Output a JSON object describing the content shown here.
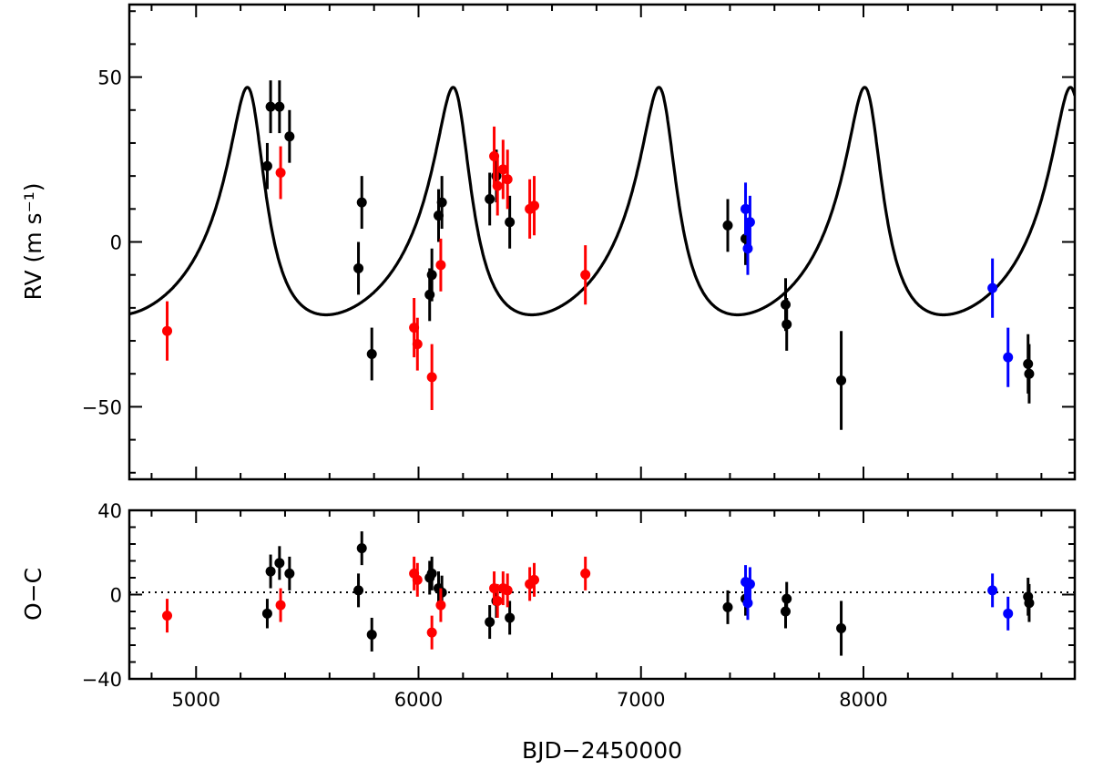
{
  "chart_data": [
    {
      "type": "scatter",
      "panel": "rv",
      "ylabel": "RV (m s⁻¹)",
      "xlim": [
        4700,
        8950
      ],
      "ylim": [
        -72,
        72
      ],
      "x_ticks": [
        5000,
        6000,
        7000,
        8000
      ],
      "y_ticks": [
        50,
        0,
        -50
      ],
      "y_tick_labels": [
        "50",
        "0",
        "−50"
      ],
      "model": {
        "period": 925,
        "t_peri": 5250,
        "ecc": 0.45,
        "omega_deg": 22,
        "K": 34.5,
        "gamma": -2
      },
      "series": [
        {
          "color": "#000000",
          "points": [
            [
              5320,
              23,
              7
            ],
            [
              5335,
              41,
              8
            ],
            [
              5375,
              41,
              8
            ],
            [
              5420,
              32,
              8
            ],
            [
              5730,
              -8,
              8
            ],
            [
              5745,
              12,
              8
            ],
            [
              5790,
              -34,
              8
            ],
            [
              6050,
              -16,
              8
            ],
            [
              6060,
              -10,
              8
            ],
            [
              6090,
              8,
              8
            ],
            [
              6105,
              12,
              8
            ],
            [
              6320,
              13,
              8
            ],
            [
              6350,
              20,
              8
            ],
            [
              6410,
              6,
              8
            ],
            [
              7390,
              5,
              8
            ],
            [
              7470,
              1,
              8
            ],
            [
              7650,
              -19,
              8
            ],
            [
              7655,
              -25,
              8
            ],
            [
              7900,
              -42,
              15
            ],
            [
              8740,
              -37,
              9
            ],
            [
              8745,
              -40,
              9
            ]
          ]
        },
        {
          "color": "#ff0000",
          "points": [
            [
              4870,
              -27,
              9
            ],
            [
              5380,
              21,
              8
            ],
            [
              5980,
              -26,
              9
            ],
            [
              5995,
              -31,
              8
            ],
            [
              6060,
              -41,
              10
            ],
            [
              6100,
              -7,
              8
            ],
            [
              6340,
              26,
              9
            ],
            [
              6355,
              17,
              9
            ],
            [
              6380,
              22,
              9
            ],
            [
              6400,
              19,
              9
            ],
            [
              6500,
              10,
              9
            ],
            [
              6520,
              11,
              9
            ],
            [
              6750,
              -10,
              9
            ]
          ]
        },
        {
          "color": "#0000ff",
          "points": [
            [
              7470,
              10,
              8
            ],
            [
              7480,
              -2,
              8
            ],
            [
              7490,
              6,
              8
            ],
            [
              8580,
              -14,
              9
            ],
            [
              8650,
              -35,
              9
            ]
          ]
        }
      ]
    },
    {
      "type": "scatter",
      "panel": "residuals",
      "xlabel": "BJD−2450000",
      "ylabel": "O−C",
      "xlim": [
        4700,
        8950
      ],
      "ylim": [
        -40,
        40
      ],
      "x_ticks": [
        5000,
        6000,
        7000,
        8000
      ],
      "x_tick_labels": [
        "5000",
        "6000",
        "7000",
        "8000"
      ],
      "y_ticks": [
        40,
        0,
        -40
      ],
      "y_tick_labels": [
        "40",
        "0",
        "−40"
      ],
      "zero_line": "dotted",
      "series": [
        {
          "color": "#000000",
          "points": [
            [
              5320,
              -9,
              7
            ],
            [
              5335,
              11,
              8
            ],
            [
              5375,
              15,
              8
            ],
            [
              5420,
              10,
              8
            ],
            [
              5730,
              2,
              8
            ],
            [
              5745,
              22,
              8
            ],
            [
              5790,
              -19,
              8
            ],
            [
              6050,
              8,
              8
            ],
            [
              6060,
              10,
              8
            ],
            [
              6090,
              3,
              8
            ],
            [
              6105,
              1,
              8
            ],
            [
              6320,
              -13,
              8
            ],
            [
              6350,
              -3,
              8
            ],
            [
              6410,
              -11,
              8
            ],
            [
              7390,
              -6,
              8
            ],
            [
              7470,
              -2,
              8
            ],
            [
              7650,
              -8,
              8
            ],
            [
              7655,
              -2,
              8
            ],
            [
              7900,
              -16,
              13
            ],
            [
              8740,
              -1,
              9
            ],
            [
              8745,
              -4,
              9
            ]
          ]
        },
        {
          "color": "#ff0000",
          "points": [
            [
              4870,
              -10,
              8
            ],
            [
              5380,
              -5,
              8
            ],
            [
              5980,
              10,
              8
            ],
            [
              5995,
              7,
              8
            ],
            [
              6060,
              -18,
              8
            ],
            [
              6100,
              -5,
              8
            ],
            [
              6340,
              3,
              8
            ],
            [
              6355,
              -3,
              8
            ],
            [
              6380,
              3,
              8
            ],
            [
              6400,
              2,
              8
            ],
            [
              6500,
              5,
              8
            ],
            [
              6520,
              7,
              8
            ],
            [
              6750,
              10,
              8
            ]
          ]
        },
        {
          "color": "#0000ff",
          "points": [
            [
              7470,
              6,
              8
            ],
            [
              7480,
              -4,
              8
            ],
            [
              7490,
              5,
              8
            ],
            [
              8580,
              2,
              8
            ],
            [
              8650,
              -9,
              8
            ]
          ]
        }
      ]
    }
  ]
}
